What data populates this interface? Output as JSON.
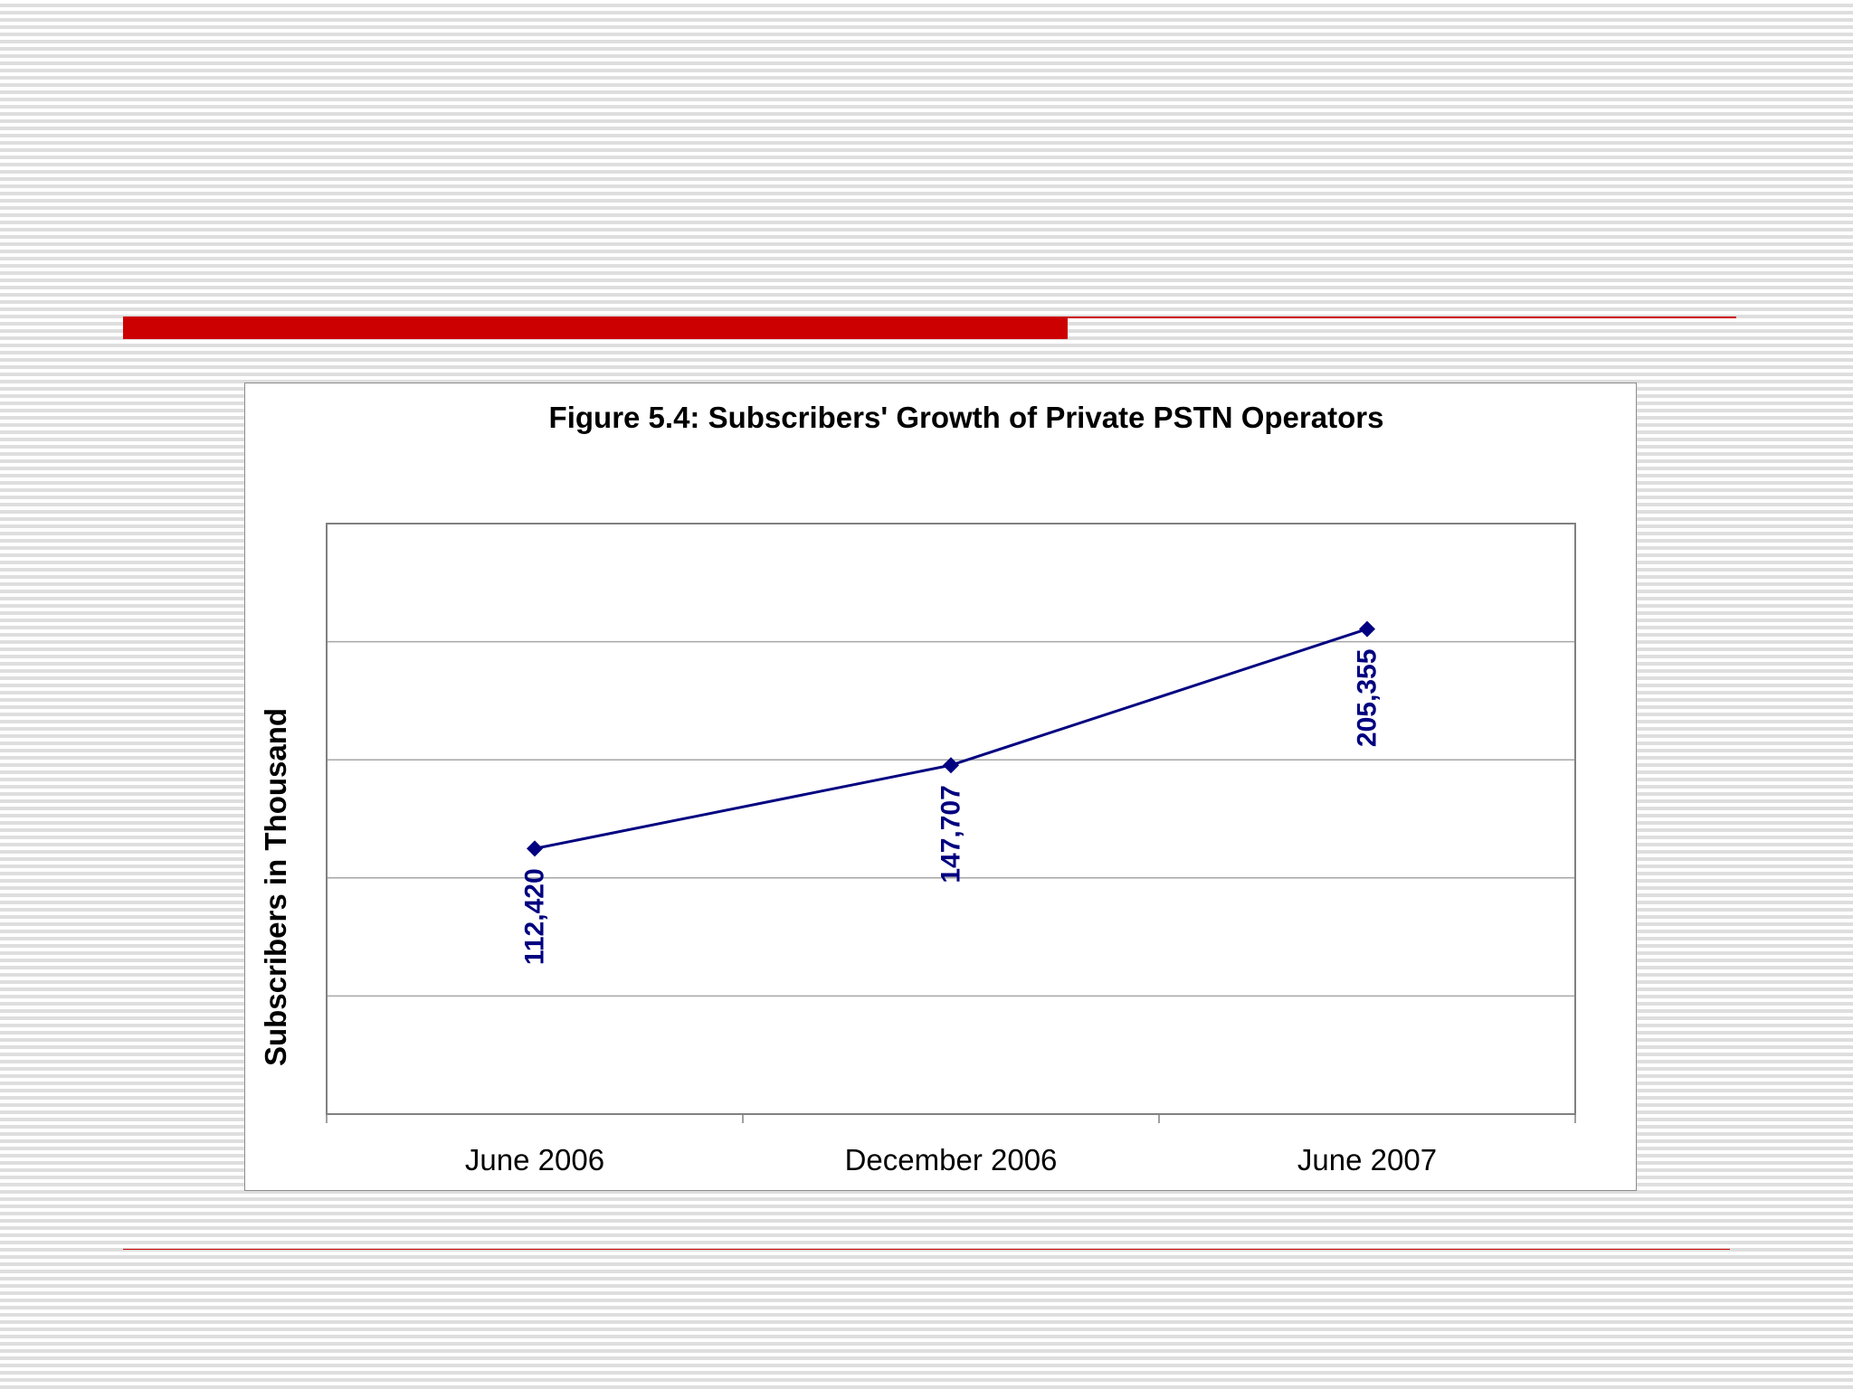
{
  "colors": {
    "accent": "#cc0000",
    "series": "#000080",
    "gridline": "#a6a6a6",
    "plot_border": "#808080",
    "text": "#000000"
  },
  "chart_data": {
    "type": "line",
    "title": "Figure 5.4: Subscribers' Growth of Private PSTN Operators",
    "xlabel": "",
    "ylabel": "Subscribers in Thousand",
    "categories": [
      "June 2006",
      "December 2006",
      "June 2007"
    ],
    "series": [
      {
        "values": [
          112420,
          147707,
          205355
        ],
        "labels": [
          "112,420",
          "147,707",
          "205,355"
        ],
        "marker": "diamond"
      }
    ],
    "ylim": [
      0,
      250000
    ],
    "y_gridlines": [
      50000,
      100000,
      150000,
      200000
    ],
    "y_tick_labels_shown": false,
    "grid": true,
    "legend": "none"
  }
}
